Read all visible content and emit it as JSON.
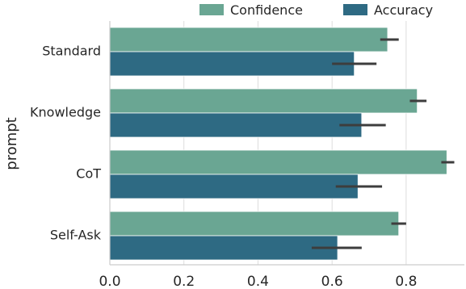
{
  "chart_data": {
    "type": "bar",
    "orientation": "horizontal",
    "title": "",
    "xlabel": "",
    "ylabel": "prompt",
    "categories": [
      "Standard",
      "Knowledge",
      "CoT",
      "Self-Ask"
    ],
    "series": [
      {
        "name": "Confidence",
        "color": "#6aa693",
        "values": [
          0.75,
          0.83,
          0.91,
          0.78
        ],
        "error_low": [
          0.73,
          0.81,
          0.895,
          0.76
        ],
        "error_high": [
          0.78,
          0.855,
          0.93,
          0.8
        ]
      },
      {
        "name": "Accuracy",
        "color": "#2e6a83",
        "values": [
          0.66,
          0.68,
          0.67,
          0.615
        ],
        "error_low": [
          0.6,
          0.62,
          0.61,
          0.545
        ],
        "error_high": [
          0.72,
          0.745,
          0.735,
          0.68
        ]
      }
    ],
    "xlim": [
      0,
      1.0
    ],
    "xticks": [
      0.0,
      0.2,
      0.4,
      0.6,
      0.8
    ],
    "xtick_labels": [
      "0.0",
      "0.2",
      "0.4",
      "0.6",
      "0.8"
    ],
    "grid": true,
    "legend": {
      "placement": "top",
      "entries": [
        "Confidence",
        "Accuracy"
      ]
    },
    "error_bar_color": "#3d3d3d"
  }
}
